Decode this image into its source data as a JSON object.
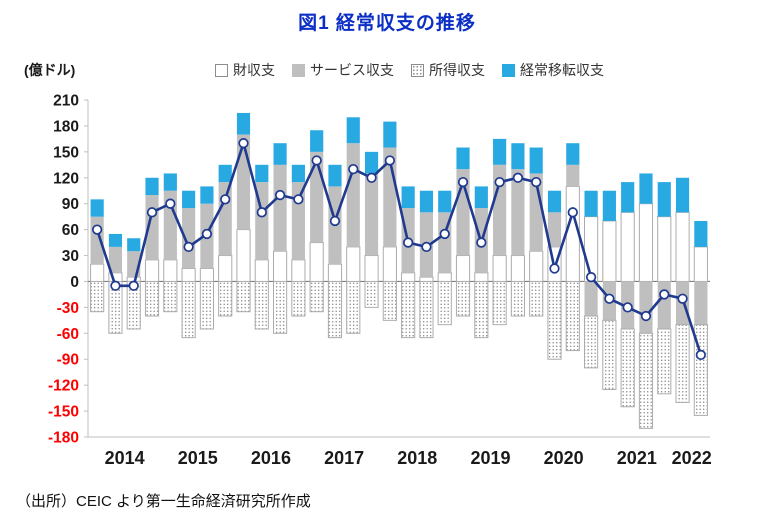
{
  "title": "図1 経常収支の推移",
  "source": "（出所）CEIC より第一生命経済研究所作成",
  "chart_data": {
    "type": "bar",
    "subtype": "stacked-quarterly-bars-with-total-line",
    "title": "図1 経常収支の推移",
    "unit_label": "(億ドル)",
    "ylim": [
      -180,
      210
    ],
    "ytick_step": 30,
    "yticks": [
      210,
      180,
      150,
      120,
      90,
      60,
      30,
      0,
      -30,
      -60,
      -90,
      -120,
      -150,
      -180
    ],
    "x_year_labels": [
      "2014",
      "2015",
      "2016",
      "2017",
      "2018",
      "2019",
      "2020",
      "2021",
      "2022"
    ],
    "quarters_per_year": [
      4,
      4,
      4,
      4,
      4,
      4,
      4,
      4,
      2
    ],
    "quarters": [
      "2014Q1",
      "2014Q2",
      "2014Q3",
      "2014Q4",
      "2015Q1",
      "2015Q2",
      "2015Q3",
      "2015Q4",
      "2016Q1",
      "2016Q2",
      "2016Q3",
      "2016Q4",
      "2017Q1",
      "2017Q2",
      "2017Q3",
      "2017Q4",
      "2018Q1",
      "2018Q2",
      "2018Q3",
      "2018Q4",
      "2019Q1",
      "2019Q2",
      "2019Q3",
      "2019Q4",
      "2020Q1",
      "2020Q2",
      "2020Q3",
      "2020Q4",
      "2021Q1",
      "2021Q2",
      "2021Q3",
      "2021Q4",
      "2022Q1",
      "2022Q2"
    ],
    "legend_position": "top",
    "grid": false,
    "series": [
      {
        "name": "財収支",
        "type": "bar",
        "style": "white",
        "values": [
          20,
          10,
          5,
          25,
          25,
          15,
          15,
          30,
          60,
          25,
          35,
          25,
          45,
          20,
          40,
          30,
          40,
          10,
          5,
          10,
          30,
          10,
          30,
          30,
          35,
          40,
          110,
          75,
          70,
          80,
          90,
          75,
          80,
          40
        ]
      },
      {
        "name": "サービス収支",
        "type": "bar",
        "style": "gray",
        "values": [
          55,
          30,
          30,
          75,
          80,
          70,
          75,
          85,
          110,
          90,
          100,
          90,
          105,
          90,
          120,
          95,
          115,
          75,
          75,
          70,
          100,
          75,
          105,
          100,
          90,
          40,
          25,
          -40,
          -45,
          -55,
          -60,
          -55,
          -50,
          -50
        ]
      },
      {
        "name": "所得収支",
        "type": "bar",
        "style": "dotted",
        "values": [
          -35,
          -60,
          -55,
          -40,
          -35,
          -65,
          -55,
          -40,
          -35,
          -55,
          -60,
          -40,
          -35,
          -65,
          -60,
          -30,
          -45,
          -65,
          -65,
          -50,
          -40,
          -65,
          -50,
          -40,
          -40,
          -90,
          -80,
          -60,
          -80,
          -90,
          -110,
          -75,
          -90,
          -105
        ]
      },
      {
        "name": "経常移転収支",
        "type": "bar",
        "style": "cyan",
        "values": [
          20,
          15,
          15,
          20,
          20,
          20,
          20,
          20,
          25,
          20,
          25,
          20,
          25,
          25,
          30,
          25,
          30,
          25,
          25,
          25,
          25,
          25,
          30,
          30,
          30,
          25,
          25,
          30,
          35,
          35,
          35,
          40,
          40,
          30
        ]
      },
      {
        "name": "経常収支（合計）",
        "type": "line",
        "style": "navy",
        "values": [
          60,
          -5,
          -5,
          80,
          90,
          40,
          55,
          95,
          160,
          80,
          100,
          95,
          140,
          70,
          130,
          120,
          140,
          45,
          40,
          55,
          115,
          45,
          115,
          120,
          115,
          15,
          80,
          5,
          -20,
          -30,
          -40,
          -15,
          -20,
          -85
        ]
      }
    ],
    "colors": {
      "title": "#0b2ec5",
      "white_bar_fill": "#ffffff",
      "bar_outline": "#acacac",
      "gray_bar": "#bfbfbf",
      "dotted_bar_dot": "#8c8c8c",
      "cyan_bar": "#29a9e1",
      "line": "#1f3a8f",
      "marker_fill": "#ffffff",
      "positive_tick": "#1a1a1a",
      "negative_tick": "#ff0000",
      "zero_axis": "#7f7f7f",
      "frame_axis": "#bfbfbf"
    }
  }
}
